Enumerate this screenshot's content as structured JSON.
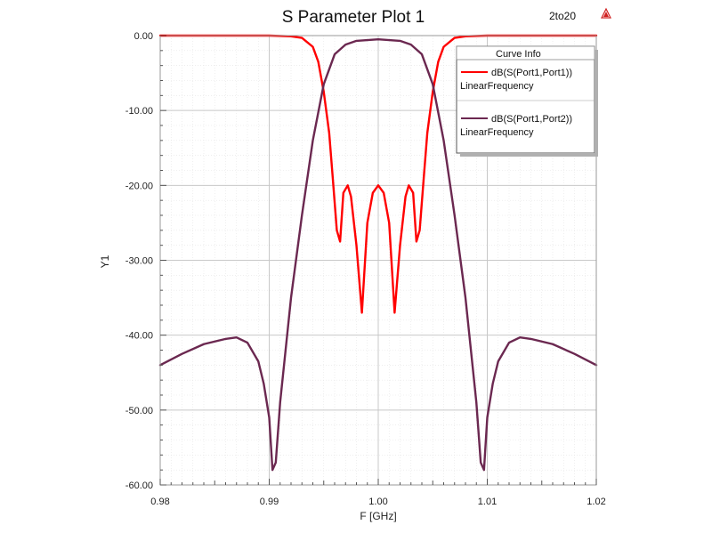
{
  "tag": "2to20",
  "logo_icon": "ansys-triangle-icon",
  "chart_data": {
    "type": "line",
    "title": "S Parameter Plot 1",
    "xlabel": "F [GHz]",
    "ylabel": "Y1",
    "xlim": [
      0.98,
      1.02
    ],
    "ylim": [
      -60,
      0
    ],
    "xticks": [
      0.98,
      0.99,
      1.0,
      1.01,
      1.02
    ],
    "xtick_labels": [
      "0.98",
      "0.99",
      "1.00",
      "1.01",
      "1.02"
    ],
    "yticks": [
      0,
      -10,
      -20,
      -30,
      -40,
      -50,
      -60
    ],
    "ytick_labels": [
      "0.00",
      "-10.00",
      "-20.00",
      "-30.00",
      "-40.00",
      "-50.00",
      "-60.00"
    ],
    "grid": true,
    "legend": {
      "title": "Curve Info",
      "placement": "top-right",
      "entries": [
        {
          "name": "dB(S(Port1,Port1))",
          "sub": "LinearFrequency",
          "color": "#ff0000"
        },
        {
          "name": "dB(S(Port1,Port2))",
          "sub": "LinearFrequency",
          "color": "#6b2850"
        }
      ]
    },
    "series": [
      {
        "name": "dB(S(Port1,Port1))",
        "color": "#ff0000",
        "x": [
          0.98,
          0.99,
          0.992,
          0.993,
          0.994,
          0.9945,
          0.995,
          0.9955,
          0.9958,
          0.9962,
          0.9965,
          0.9968,
          0.9972,
          0.9975,
          0.998,
          0.9985,
          0.999,
          0.9995,
          1.0,
          1.0005,
          1.001,
          1.0015,
          1.002,
          1.0025,
          1.0028,
          1.0032,
          1.0035,
          1.0038,
          1.0042,
          1.0045,
          1.005,
          1.0055,
          1.006,
          1.007,
          1.008,
          1.01,
          1.02
        ],
        "y": [
          0,
          0,
          -0.1,
          -0.3,
          -1.5,
          -3.5,
          -7.5,
          -13,
          -18.5,
          -26,
          -27.5,
          -21,
          -20,
          -21.5,
          -28,
          -37,
          -25,
          -21,
          -20,
          -21,
          -25,
          -37,
          -28,
          -21.5,
          -20,
          -21,
          -27.5,
          -26,
          -18.5,
          -13,
          -7.5,
          -3.5,
          -1.5,
          -0.3,
          -0.1,
          0,
          0
        ]
      },
      {
        "name": "dB(S(Port1,Port2))",
        "color": "#6b2850",
        "x": [
          0.98,
          0.982,
          0.984,
          0.986,
          0.987,
          0.988,
          0.989,
          0.9895,
          0.99,
          0.9903,
          0.9906,
          0.9909,
          0.991,
          0.9915,
          0.992,
          0.993,
          0.994,
          0.995,
          0.996,
          0.997,
          0.998,
          1.0,
          1.002,
          1.003,
          1.004,
          1.005,
          1.006,
          1.007,
          1.008,
          1.0085,
          1.009,
          1.0091,
          1.0094,
          1.0097,
          1.01,
          1.0105,
          1.011,
          1.012,
          1.013,
          1.014,
          1.016,
          1.018,
          1.02
        ],
        "y": [
          -44,
          -42.5,
          -41.2,
          -40.5,
          -40.3,
          -41,
          -43.5,
          -46.5,
          -51,
          -58,
          -57,
          -51,
          -49,
          -42,
          -35,
          -24,
          -14,
          -6.5,
          -2.5,
          -1.2,
          -0.7,
          -0.5,
          -0.7,
          -1.2,
          -2.5,
          -6.5,
          -14,
          -24,
          -35,
          -42,
          -49,
          -51,
          -57,
          -58,
          -51,
          -46.5,
          -43.5,
          -41,
          -40.3,
          -40.5,
          -41.2,
          -42.5,
          -44
        ]
      }
    ]
  }
}
